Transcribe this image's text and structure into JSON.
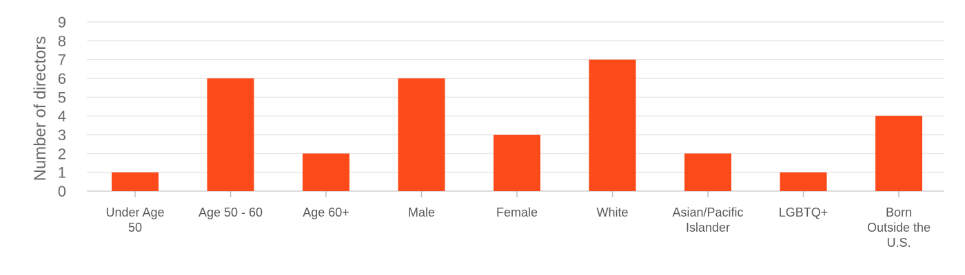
{
  "chart_data": {
    "type": "bar",
    "ylabel": "Number of directors",
    "ylim": [
      0,
      9
    ],
    "yticks": [
      0,
      1,
      2,
      3,
      4,
      5,
      6,
      7,
      8,
      9
    ],
    "grid": true,
    "bar_color": "#fc4a1a",
    "categories": [
      [
        "Under Age",
        "50"
      ],
      [
        "Age 50 - 60"
      ],
      [
        "Age 60+"
      ],
      [
        "Male"
      ],
      [
        "Female"
      ],
      [
        "White"
      ],
      [
        "Asian/Pacific",
        "Islander"
      ],
      [
        "LGBTQ+"
      ],
      [
        "Born",
        "Outside the",
        "U.S."
      ]
    ],
    "values": [
      1,
      6,
      2,
      6,
      3,
      7,
      2,
      1,
      4
    ]
  }
}
